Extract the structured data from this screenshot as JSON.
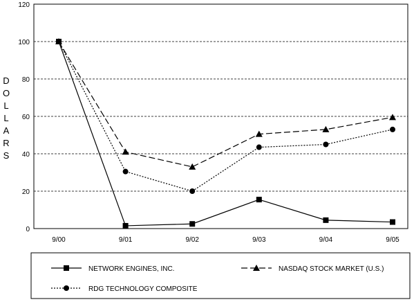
{
  "chart_data": {
    "type": "line",
    "categories": [
      "9/00",
      "9/01",
      "9/02",
      "9/03",
      "9/04",
      "9/05"
    ],
    "ylabel": "DOLLARS",
    "ylim": [
      0,
      120
    ],
    "yticks": [
      0,
      20,
      40,
      60,
      80,
      100,
      120
    ],
    "grid": true,
    "legend_placement": "bottom",
    "series": [
      {
        "name": "NETWORK ENGINES, INC.",
        "marker": "square",
        "line": "solid",
        "values": [
          100,
          1.5,
          2.5,
          15.5,
          4.5,
          3.5
        ]
      },
      {
        "name": "NASDAQ STOCK MARKET (U.S.)",
        "marker": "triangle",
        "line": "dashed",
        "values": [
          100,
          41,
          33,
          50.5,
          53,
          59.5
        ]
      },
      {
        "name": "RDG TECHNOLOGY COMPOSITE",
        "marker": "circle",
        "line": "dotted",
        "values": [
          100,
          30.5,
          20,
          43.5,
          45,
          53
        ]
      }
    ]
  }
}
